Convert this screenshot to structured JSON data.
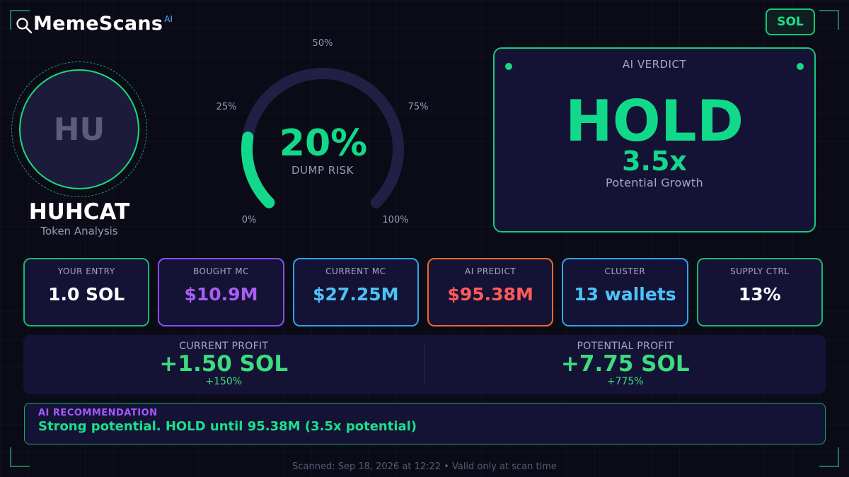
{
  "header": {
    "brand": "MemeScans",
    "brand_sup": "AI",
    "chain": "SOL"
  },
  "token": {
    "avatar_text": "HU",
    "name": "HUHCAT",
    "subtitle": "Token Analysis"
  },
  "gauge": {
    "value_text": "20%",
    "value": 0.2,
    "caption": "DUMP RISK",
    "tick_labels": [
      "0%",
      "25%",
      "50%",
      "75%",
      "100%"
    ],
    "colors": {
      "track": "#221f45",
      "fill": "#12d98a"
    }
  },
  "verdict": {
    "title": "AI VERDICT",
    "decision": "HOLD",
    "multiplier": "3.5x",
    "caption": "Potential Growth"
  },
  "stats": [
    {
      "label": "YOUR ENTRY",
      "value": "1.0 SOL",
      "color": "#ffffff",
      "border": "#17b870"
    },
    {
      "label": "BOUGHT MC",
      "value": "$10.9M",
      "color": "#a95df5",
      "border": "#8a4ff0"
    },
    {
      "label": "CURRENT MC",
      "value": "$27.25M",
      "color": "#4cc3f7",
      "border": "#2ea6e8"
    },
    {
      "label": "AI PREDICT",
      "value": "$95.38M",
      "color": "#ff5a5a",
      "border": "#ec6a2a"
    },
    {
      "label": "CLUSTER",
      "value": "13 wallets",
      "color": "#4cc3f7",
      "border": "#2ea6e8"
    },
    {
      "label": "SUPPLY CTRL",
      "value": "13%",
      "color": "#ffffff",
      "border": "#17b870"
    }
  ],
  "profit": {
    "current": {
      "label": "CURRENT PROFIT",
      "value": "+1.50 SOL",
      "pct": "+150%"
    },
    "potential": {
      "label": "POTENTIAL PROFIT",
      "value": "+7.75 SOL",
      "pct": "+775%"
    }
  },
  "recommendation": {
    "label": "AI RECOMMENDATION",
    "text": "Strong potential. HOLD until 95.38M (3.5x potential)"
  },
  "footer": {
    "text": "Scanned: Sep 18, 2026 at 12:22  •  Valid only at scan time"
  }
}
